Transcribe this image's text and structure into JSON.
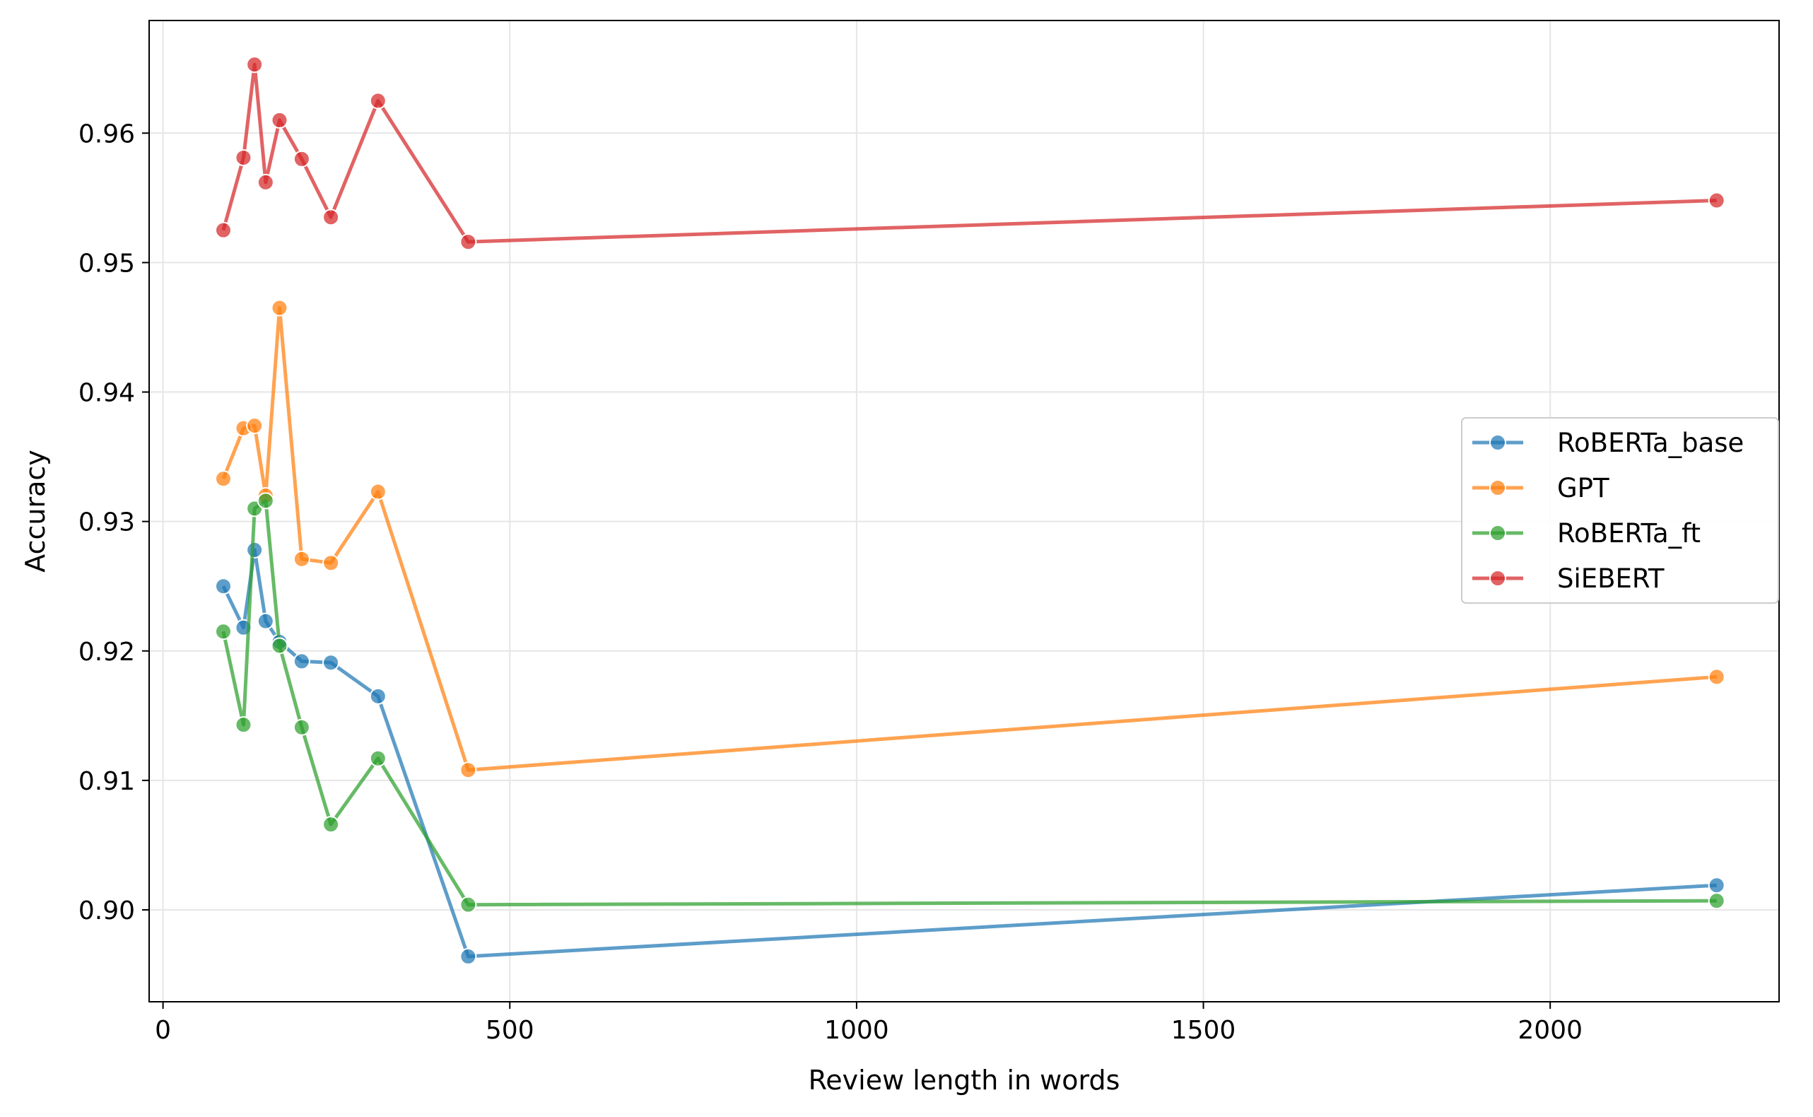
{
  "chart_data": {
    "type": "line",
    "title": "",
    "xlabel": "Review length in words",
    "ylabel": "Accuracy",
    "xlim": [
      -20,
      2330
    ],
    "ylim": [
      0.8929,
      0.9687
    ],
    "xticks": [
      0,
      500,
      1000,
      1500,
      2000
    ],
    "xtick_labels": [
      "0",
      "500",
      "1000",
      "1500",
      "2000"
    ],
    "yticks": [
      0.9,
      0.91,
      0.92,
      0.93,
      0.94,
      0.95,
      0.96
    ],
    "ytick_labels": [
      "0.90",
      "0.91",
      "0.92",
      "0.93",
      "0.94",
      "0.95",
      "0.96"
    ],
    "grid": true,
    "legend_position": "center-right",
    "x": [
      87,
      116,
      132,
      148,
      168,
      200,
      242,
      310,
      440,
      2240
    ],
    "series": [
      {
        "name": "RoBERTa_base",
        "color": "#1f77b4",
        "values": [
          0.925,
          0.9218,
          0.9278,
          0.9223,
          0.9207,
          0.9192,
          0.9191,
          0.9165,
          0.8964,
          0.9019
        ]
      },
      {
        "name": "GPT",
        "color": "#ff7f0e",
        "values": [
          0.9333,
          0.9372,
          0.9374,
          0.932,
          0.9465,
          0.9271,
          0.9268,
          0.9323,
          0.9108,
          0.918
        ]
      },
      {
        "name": "RoBERTa_ft",
        "color": "#2ca02c",
        "values": [
          0.9215,
          0.9143,
          0.931,
          0.9316,
          0.9204,
          0.9141,
          0.9066,
          0.9117,
          0.9004,
          0.9007
        ]
      },
      {
        "name": "SiEBERT",
        "color": "#d62728",
        "values": [
          0.9525,
          0.9581,
          0.9653,
          0.9562,
          0.961,
          0.958,
          0.9535,
          0.9625,
          0.9516,
          0.9548
        ]
      }
    ]
  }
}
